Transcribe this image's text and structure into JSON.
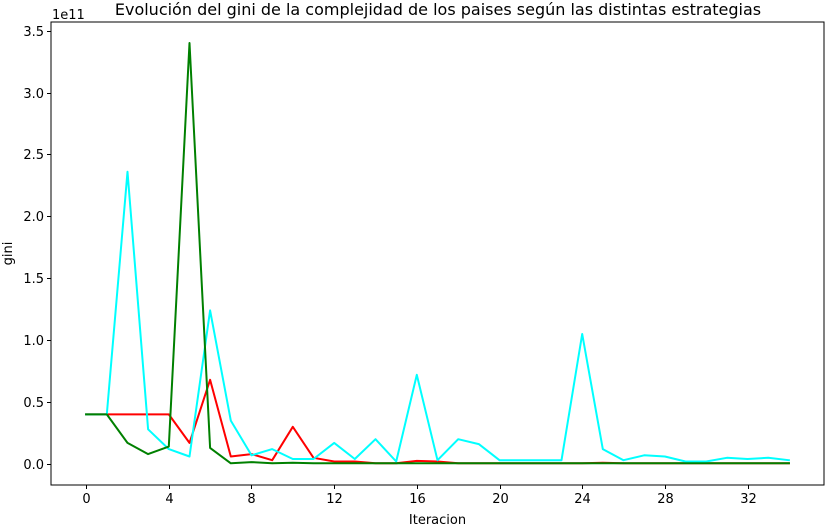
{
  "chart_data": {
    "type": "line",
    "title": "Evolución del gini de la complejidad de los paises según las distintas estrategias",
    "xlabel": "Iteracion",
    "ylabel": "gini",
    "y_offset_label": "1e11",
    "xlim": [
      -1.7,
      35.7
    ],
    "ylim": [
      -0.17,
      3.57
    ],
    "x_ticks": [
      0,
      4,
      8,
      12,
      16,
      20,
      24,
      28,
      32
    ],
    "x_tick_labels": [
      "0",
      "4",
      "8",
      "12",
      "16",
      "20",
      "24",
      "28",
      "32"
    ],
    "y_ticks": [
      0.0,
      0.5,
      1.0,
      1.5,
      2.0,
      2.5,
      3.0,
      3.5
    ],
    "y_tick_labels": [
      "0.0",
      "0.5",
      "1.0",
      "1.5",
      "2.0",
      "2.5",
      "3.0",
      "3.5"
    ],
    "grid": false,
    "legend": false,
    "series": [
      {
        "color": "#ff0000",
        "x": [
          0,
          1,
          2,
          3,
          4,
          5,
          6,
          7,
          8,
          9,
          10,
          11,
          12,
          13,
          14,
          15,
          16,
          17,
          18,
          19,
          20,
          21,
          22,
          23,
          24,
          25,
          26,
          27,
          28,
          29,
          30,
          31,
          32,
          33,
          34
        ],
        "values": [
          0.4,
          0.4,
          0.4,
          0.4,
          0.4,
          0.17,
          0.68,
          0.06,
          0.08,
          0.03,
          0.3,
          0.05,
          0.02,
          0.02,
          0.005,
          0.005,
          0.025,
          0.02,
          0.005,
          0.005,
          0.005,
          0.005,
          0.005,
          0.005,
          0.005,
          0.01,
          0.005,
          0.005,
          0.005,
          0.005,
          0.005,
          0.005,
          0.005,
          0.005,
          0.005
        ]
      },
      {
        "color": "#00ffff",
        "x": [
          0,
          1,
          2,
          3,
          4,
          5,
          6,
          7,
          8,
          9,
          10,
          11,
          12,
          13,
          14,
          15,
          16,
          17,
          18,
          19,
          20,
          21,
          22,
          23,
          24,
          25,
          26,
          27,
          28,
          29,
          30,
          31,
          32,
          33,
          34
        ],
        "values": [
          0.4,
          0.4,
          2.36,
          0.28,
          0.12,
          0.06,
          1.24,
          0.35,
          0.07,
          0.12,
          0.04,
          0.04,
          0.17,
          0.04,
          0.2,
          0.02,
          0.72,
          0.03,
          0.2,
          0.16,
          0.03,
          0.03,
          0.03,
          0.03,
          1.05,
          0.12,
          0.03,
          0.07,
          0.06,
          0.02,
          0.02,
          0.05,
          0.04,
          0.05,
          0.03
        ]
      },
      {
        "color": "#008000",
        "x": [
          0,
          1,
          2,
          3,
          4,
          5,
          6,
          7,
          8,
          9,
          10,
          11,
          12,
          13,
          14,
          15,
          16,
          17,
          18,
          19,
          20,
          21,
          22,
          23,
          24,
          25,
          26,
          27,
          28,
          29,
          30,
          31,
          32,
          33,
          34
        ],
        "values": [
          0.4,
          0.4,
          0.17,
          0.08,
          0.14,
          3.4,
          0.13,
          0.005,
          0.015,
          0.005,
          0.01,
          0.005,
          0.005,
          0.005,
          0.005,
          0.005,
          0.005,
          0.005,
          0.005,
          0.005,
          0.005,
          0.005,
          0.005,
          0.005,
          0.005,
          0.005,
          0.005,
          0.005,
          0.005,
          0.005,
          0.005,
          0.005,
          0.005,
          0.005,
          0.005
        ]
      }
    ]
  }
}
